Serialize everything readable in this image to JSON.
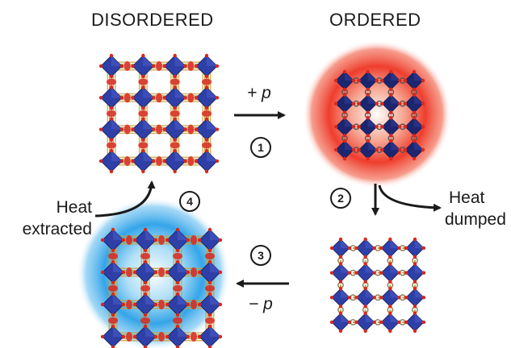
{
  "titles": {
    "disordered": "DISORDERED",
    "ordered": "ORDERED"
  },
  "steps": {
    "s1": "1",
    "s2": "2",
    "s3": "3",
    "s4": "4"
  },
  "operations": {
    "compress": "+ p",
    "decompress": "− p"
  },
  "heat": {
    "extracted_line1": "Heat",
    "extracted_line2": "extracted",
    "dumped_line1": "Heat",
    "dumped_line2": "dumped"
  },
  "colors": {
    "octahedron": "#2f3fa8",
    "octahedron_dark": "#1c2670",
    "linker": "#c9a03a",
    "oxygen": "#d8281e",
    "hot_glow": "#ee3322",
    "cold_glow": "#2aa0e8",
    "arrow": "#1a1a1a"
  }
}
